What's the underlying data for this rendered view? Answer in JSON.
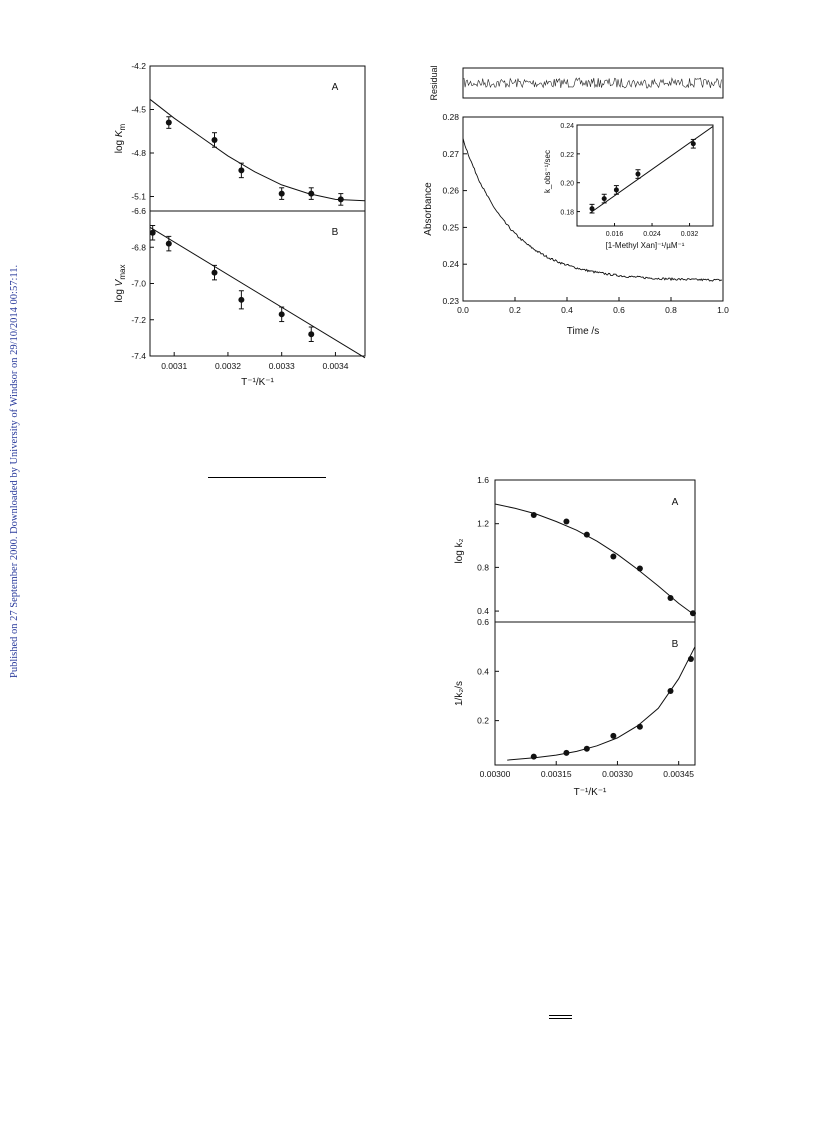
{
  "watermark": "Published on 27 September 2000. Downloaded by University of Windsor on 29/10/2014 00:57:11.",
  "chart_data": [
    {
      "id": "fig1",
      "type": "scatter",
      "panels": [
        {
          "panel_label": "A",
          "ylabel": "log K_m",
          "ylim": [
            -5.2,
            -4.2
          ],
          "yticks": [
            "-4.2",
            "-4.5",
            "-4.8",
            "-5.1"
          ],
          "points": [
            {
              "x": 0.00309,
              "y": -4.59,
              "err": 0.04
            },
            {
              "x": 0.003175,
              "y": -4.71,
              "err": 0.05
            },
            {
              "x": 0.003225,
              "y": -4.92,
              "err": 0.05
            },
            {
              "x": 0.0033,
              "y": -5.08,
              "err": 0.04
            },
            {
              "x": 0.003355,
              "y": -5.08,
              "err": 0.04
            },
            {
              "x": 0.00341,
              "y": -5.12,
              "err": 0.04
            }
          ],
          "fit": [
            [
              0.003055,
              -4.43
            ],
            [
              0.0031,
              -4.56
            ],
            [
              0.00315,
              -4.69
            ],
            [
              0.0032,
              -4.82
            ],
            [
              0.00325,
              -4.93
            ],
            [
              0.0033,
              -5.02
            ],
            [
              0.00335,
              -5.08
            ],
            [
              0.0034,
              -5.12
            ],
            [
              0.003455,
              -5.13
            ]
          ]
        },
        {
          "panel_label": "B",
          "ylabel": "log V_max",
          "ylim": [
            -7.4,
            -6.6
          ],
          "yticks": [
            "-6.6",
            "-6.8",
            "-7.0",
            "-7.2",
            "-7.4"
          ],
          "points": [
            {
              "x": 0.00306,
              "y": -6.72,
              "err": 0.04
            },
            {
              "x": 0.00309,
              "y": -6.78,
              "err": 0.04
            },
            {
              "x": 0.003175,
              "y": -6.94,
              "err": 0.04
            },
            {
              "x": 0.003225,
              "y": -7.09,
              "err": 0.05
            },
            {
              "x": 0.0033,
              "y": -7.17,
              "err": 0.04
            },
            {
              "x": 0.003355,
              "y": -7.28,
              "err": 0.04
            }
          ],
          "fit": [
            [
              0.003055,
              -6.69
            ],
            [
              0.003455,
              -7.41
            ]
          ]
        }
      ],
      "xlim": [
        0.003055,
        0.003455
      ],
      "xticks": [
        0.0031,
        0.0032,
        0.0033,
        0.0034
      ],
      "xtick_labels": [
        "0.0031",
        "0.0032",
        "0.0033",
        "0.0034"
      ],
      "xlabel": "T⁻¹/K⁻¹"
    },
    {
      "id": "fig2",
      "type": "line",
      "title": "",
      "residual_label": "Residual",
      "xlabel": "Time /s",
      "ylabel": "Absorbance",
      "xlim": [
        0.0,
        1.0
      ],
      "ylim": [
        0.23,
        0.28
      ],
      "xtick_labels": [
        "0.0",
        "0.2",
        "0.4",
        "0.6",
        "0.8",
        "1.0"
      ],
      "ytick_labels": [
        "0.23",
        "0.24",
        "0.25",
        "0.26",
        "0.27",
        "0.28"
      ],
      "series": [
        {
          "model": "exponential",
          "amplitude": 0.0385,
          "rate": 5.5,
          "offset": 0.2355
        }
      ],
      "inset": {
        "type": "scatter",
        "xlabel": "[1-Methyl Xan]⁻¹/µM⁻¹",
        "ylabel": "k_obs⁻¹/sec",
        "xlim": [
          0.008,
          0.037
        ],
        "ylim": [
          0.17,
          0.24
        ],
        "xtick_labels": [
          "0.016",
          "0.024",
          "0.032"
        ],
        "xtick_values": [
          0.016,
          0.024,
          0.032
        ],
        "ytick_labels": [
          "0.18",
          "0.20",
          "0.22",
          "0.24"
        ],
        "ytick_values": [
          0.18,
          0.2,
          0.22,
          0.24
        ],
        "points": [
          {
            "x": 0.0112,
            "y": 0.182,
            "err": 0.003
          },
          {
            "x": 0.0138,
            "y": 0.189,
            "err": 0.003
          },
          {
            "x": 0.0164,
            "y": 0.195,
            "err": 0.003
          },
          {
            "x": 0.021,
            "y": 0.206,
            "err": 0.003
          },
          {
            "x": 0.0328,
            "y": 0.227,
            "err": 0.003
          }
        ],
        "fit": [
          [
            0.0108,
            0.179
          ],
          [
            0.037,
            0.239
          ]
        ]
      }
    },
    {
      "id": "fig3",
      "type": "scatter",
      "xlabel": "T⁻¹/K⁻¹",
      "xlim": [
        0.003,
        0.00349
      ],
      "xtick_values": [
        0.003,
        0.00315,
        0.0033,
        0.00345
      ],
      "xtick_labels": [
        "0.00300",
        "0.00315",
        "0.00330",
        "0.00345"
      ],
      "panels": [
        {
          "panel_label": "A",
          "ylabel": "log k₂",
          "ylim": [
            0.3,
            1.6
          ],
          "ytick_values": [
            1.6,
            1.2,
            0.8,
            0.4
          ],
          "ytick_labels": [
            "1.6",
            "1.2",
            "0.8",
            "0.4"
          ],
          "points": [
            [
              0.003095,
              1.28
            ],
            [
              0.003175,
              1.22
            ],
            [
              0.003225,
              1.1
            ],
            [
              0.00329,
              0.9
            ],
            [
              0.003355,
              0.79
            ],
            [
              0.00343,
              0.52
            ],
            [
              0.003485,
              0.38
            ]
          ],
          "fit": [
            [
              0.003,
              1.38
            ],
            [
              0.00305,
              1.34
            ],
            [
              0.0031,
              1.29
            ],
            [
              0.00315,
              1.22
            ],
            [
              0.0032,
              1.14
            ],
            [
              0.00325,
              1.04
            ],
            [
              0.0033,
              0.92
            ],
            [
              0.00335,
              0.78
            ],
            [
              0.0034,
              0.63
            ],
            [
              0.00345,
              0.47
            ],
            [
              0.00349,
              0.36
            ]
          ]
        },
        {
          "panel_label": "B",
          "ylabel": "1/k₂/s",
          "ylim": [
            0.02,
            0.6
          ],
          "ytick_values": [
            0.6,
            0.4,
            0.2
          ],
          "ytick_labels": [
            "0.6",
            "0.4",
            "0.2"
          ],
          "points": [
            [
              0.003095,
              0.054
            ],
            [
              0.003175,
              0.069
            ],
            [
              0.003225,
              0.086
            ],
            [
              0.00329,
              0.138
            ],
            [
              0.003355,
              0.175
            ],
            [
              0.00343,
              0.32
            ],
            [
              0.00348,
              0.45
            ]
          ],
          "fit": [
            [
              0.00303,
              0.04
            ],
            [
              0.0031,
              0.05
            ],
            [
              0.00315,
              0.06
            ],
            [
              0.0032,
              0.075
            ],
            [
              0.00325,
              0.098
            ],
            [
              0.0033,
              0.13
            ],
            [
              0.00335,
              0.18
            ],
            [
              0.0034,
              0.25
            ],
            [
              0.00345,
              0.37
            ],
            [
              0.00349,
              0.5
            ]
          ]
        }
      ]
    }
  ],
  "footer_marks": {
    "equilibrium_arrow": "⇌"
  }
}
